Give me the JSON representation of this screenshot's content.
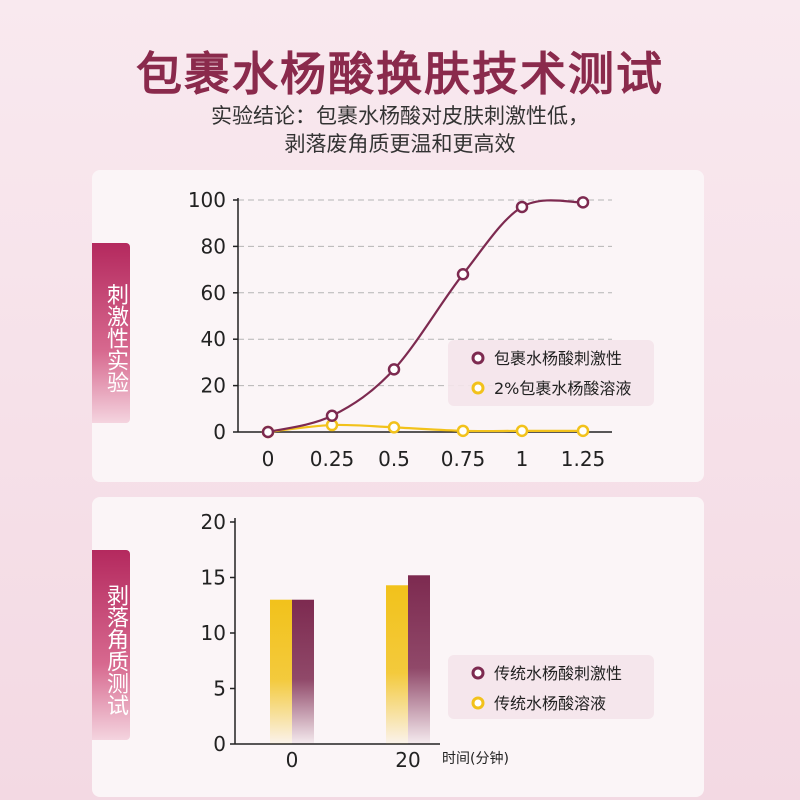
{
  "header": {
    "title": "包裹水杨酸换肤技术测试",
    "subtitle_line1": "实验结论：包裹水杨酸对皮肤刺激性低，",
    "subtitle_line2": "剥落废角质更温和更高效"
  },
  "colors": {
    "accent": "#8a2a4c",
    "series_purple": "#7d2a50",
    "series_yellow": "#f2c21b",
    "tab": "#b4295e"
  },
  "chart_data": [
    {
      "type": "line",
      "side_label": "刺激性实验",
      "x": [
        0,
        0.25,
        0.5,
        0.75,
        1,
        1.25
      ],
      "xticks": [
        "0",
        "0.25",
        "0.5",
        "0.75",
        "1",
        "1.25"
      ],
      "yticks": [
        "0",
        "20",
        "40",
        "60",
        "80",
        "100"
      ],
      "ylim": [
        0,
        100
      ],
      "grid": true,
      "legend_position": "right",
      "series": [
        {
          "name": "包裹水杨酸刺激性",
          "values": [
            0,
            7,
            27,
            68,
            97,
            99
          ]
        },
        {
          "name": "2%包裹水杨酸溶液",
          "values": [
            0,
            3,
            2,
            0.5,
            0.5,
            0.5
          ]
        }
      ]
    },
    {
      "type": "bar",
      "side_label": "剥落角质测试",
      "categories": [
        "0",
        "20"
      ],
      "xlabel": "时间(分钟)",
      "yticks": [
        "0",
        "5",
        "10",
        "15",
        "20"
      ],
      "ylim": [
        0,
        20
      ],
      "legend_position": "right",
      "series": [
        {
          "name": "传统水杨酸溶液",
          "values": [
            13,
            14.3
          ]
        },
        {
          "name": "传统水杨酸刺激性",
          "values": [
            13,
            15.2
          ]
        }
      ]
    }
  ]
}
